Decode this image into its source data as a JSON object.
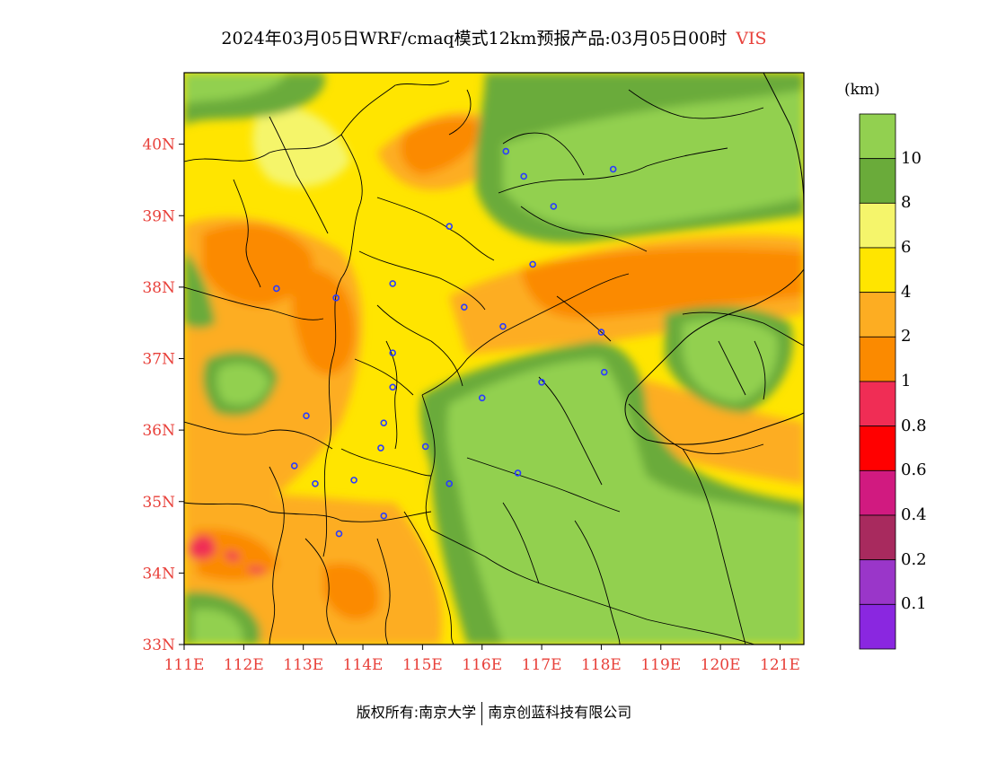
{
  "title": {
    "main": "2024年03月05日WRF/cmaq模式12km预报产品:03月05日00时",
    "variable": "VIS",
    "variable_color": "#e8403a"
  },
  "footer": {
    "left": "版权所有:南京大学",
    "right": "南京创蓝科技有限公司"
  },
  "colorbar": {
    "unit": "(km)",
    "bins": [
      {
        "color": "#92d050"
      },
      {
        "color": "#6aab3a"
      },
      {
        "color": "#f5f56b"
      },
      {
        "color": "#ffe500"
      },
      {
        "color": "#fdad22"
      },
      {
        "color": "#fb8a00"
      },
      {
        "color": "#f02d55"
      },
      {
        "color": "#ff0000"
      },
      {
        "color": "#d11a80"
      },
      {
        "color": "#a82a5e"
      },
      {
        "color": "#9a36c9"
      },
      {
        "color": "#8a27e0"
      }
    ],
    "labels": [
      "10",
      "8",
      "6",
      "4",
      "2",
      "1",
      "0.8",
      "0.6",
      "0.4",
      "0.2",
      "0.1"
    ]
  },
  "axes": {
    "lat_labels": [
      "40N",
      "39N",
      "38N",
      "37N",
      "36N",
      "35N",
      "34N",
      "33N"
    ],
    "lon_labels": [
      "111E",
      "112E",
      "113E",
      "114E",
      "115E",
      "116E",
      "117E",
      "118E",
      "119E",
      "120E",
      "121E"
    ],
    "lat_range": [
      33,
      41
    ],
    "lon_range": [
      111,
      121.4
    ],
    "label_color": "#e8403a"
  },
  "stations": [
    {
      "lon": 116.4,
      "lat": 39.9
    },
    {
      "lon": 116.7,
      "lat": 39.55
    },
    {
      "lon": 117.2,
      "lat": 39.13
    },
    {
      "lon": 118.2,
      "lat": 39.65
    },
    {
      "lon": 115.45,
      "lat": 38.85
    },
    {
      "lon": 116.85,
      "lat": 38.32
    },
    {
      "lon": 114.5,
      "lat": 38.05
    },
    {
      "lon": 113.55,
      "lat": 37.85
    },
    {
      "lon": 112.55,
      "lat": 37.98
    },
    {
      "lon": 115.7,
      "lat": 37.72
    },
    {
      "lon": 116.35,
      "lat": 37.45
    },
    {
      "lon": 118.0,
      "lat": 37.37
    },
    {
      "lon": 114.5,
      "lat": 37.08
    },
    {
      "lon": 114.5,
      "lat": 36.6
    },
    {
      "lon": 116.0,
      "lat": 36.45
    },
    {
      "lon": 117.0,
      "lat": 36.67
    },
    {
      "lon": 118.05,
      "lat": 36.81
    },
    {
      "lon": 113.05,
      "lat": 36.2
    },
    {
      "lon": 114.35,
      "lat": 36.1
    },
    {
      "lon": 114.3,
      "lat": 35.75
    },
    {
      "lon": 115.05,
      "lat": 35.77
    },
    {
      "lon": 112.85,
      "lat": 35.5
    },
    {
      "lon": 113.85,
      "lat": 35.3
    },
    {
      "lon": 113.2,
      "lat": 35.25
    },
    {
      "lon": 115.45,
      "lat": 35.25
    },
    {
      "lon": 116.6,
      "lat": 35.4
    },
    {
      "lon": 114.35,
      "lat": 34.8
    },
    {
      "lon": 113.6,
      "lat": 34.55
    }
  ]
}
